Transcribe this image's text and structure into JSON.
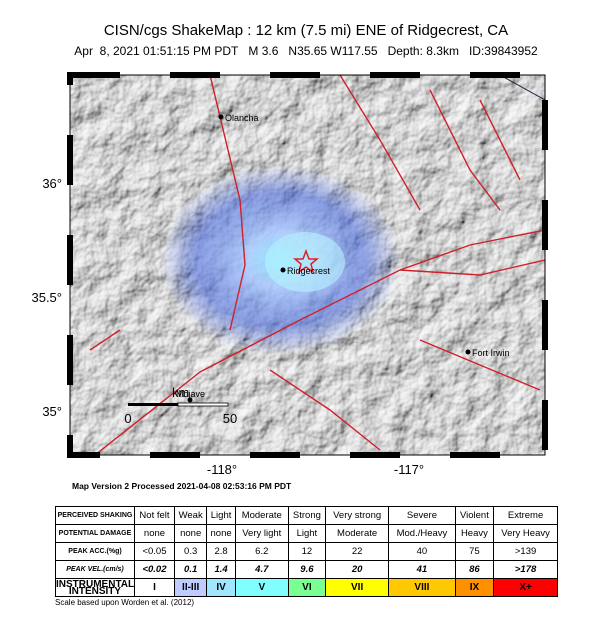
{
  "header": {
    "title": "CISN/cgs ShakeMap : 12 km (7.5 mi) ENE of Ridgecrest, CA",
    "details": [
      "Apr  8, 2021 01:51:15 PM PDT",
      "M 3.6",
      "N35.65 W117.55",
      "Depth: 8.3km",
      "ID:39843952"
    ]
  },
  "map": {
    "places": [
      "Olancha",
      "Ridgecrest",
      "Fort Irwin",
      "Mojave"
    ],
    "lat_labels": [
      "36°",
      "35.5°",
      "35°"
    ],
    "lon_labels": [
      "-118°",
      "-117°"
    ],
    "scale": {
      "unit": "km",
      "labels": [
        "0",
        "50"
      ]
    }
  },
  "footer": "Map Version 2 Processed 2021-04-08 02:53:16 PM PDT",
  "table": {
    "rows": [
      [
        "PERCEIVED SHAKING",
        "Not felt",
        "Weak",
        "Light",
        "Moderate",
        "Strong",
        "Very strong",
        "Severe",
        "Violent",
        "Extreme"
      ],
      [
        "POTENTIAL DAMAGE",
        "none",
        "none",
        "none",
        "Very light",
        "Light",
        "Moderate",
        "Mod./Heavy",
        "Heavy",
        "Very Heavy"
      ],
      [
        "PEAK ACC.(%g)",
        "<0.05",
        "0.3",
        "2.8",
        "6.2",
        "12",
        "22",
        "40",
        "75",
        ">139"
      ],
      [
        "PEAK VEL.(cm/s)",
        "<0.02",
        "0.1",
        "1.4",
        "4.7",
        "9.6",
        "20",
        "41",
        "86",
        ">178"
      ],
      [
        "INSTRUMENTAL INTENSITY",
        "I",
        "II-III",
        "IV",
        "V",
        "VI",
        "VII",
        "VIII",
        "IX",
        "X+"
      ]
    ],
    "note": "Scale based upon Worden et al. (2012)"
  }
}
